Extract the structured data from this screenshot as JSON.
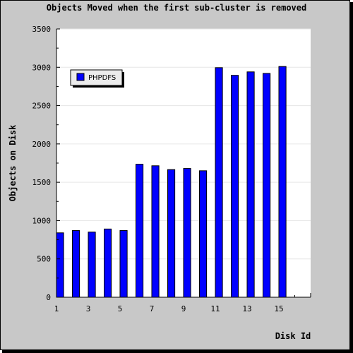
{
  "chart_data": {
    "type": "bar",
    "title": "Objects Moved when the first sub-cluster is removed",
    "xlabel": "Disk Id",
    "ylabel": "Objects on Disk",
    "categories": [
      "1",
      "2",
      "3",
      "4",
      "5",
      "6",
      "7",
      "8",
      "9",
      "10",
      "11",
      "12",
      "13",
      "14",
      "15"
    ],
    "x_tick_labels": [
      "1",
      "3",
      "5",
      "7",
      "9",
      "11",
      "13",
      "15"
    ],
    "y_tick_labels": [
      "0",
      "500",
      "1000",
      "1500",
      "2000",
      "2500",
      "3000",
      "3500"
    ],
    "y_ticks": [
      0,
      500,
      1000,
      1500,
      2000,
      2500,
      3000,
      3500
    ],
    "ylim": [
      0,
      3500
    ],
    "x_range": [
      1,
      17
    ],
    "grid": true,
    "legend_position": "top-left",
    "series": [
      {
        "name": "PHPDFS",
        "color": "#0000ff",
        "values": [
          840,
          870,
          850,
          890,
          870,
          1735,
          1715,
          1665,
          1680,
          1650,
          2995,
          2895,
          2940,
          2920,
          3010
        ]
      }
    ]
  },
  "colors": {
    "frame": "#c8c8c8",
    "plot": "#ffffff",
    "bar": "#0000ff",
    "grid": "#e6e6e6"
  }
}
